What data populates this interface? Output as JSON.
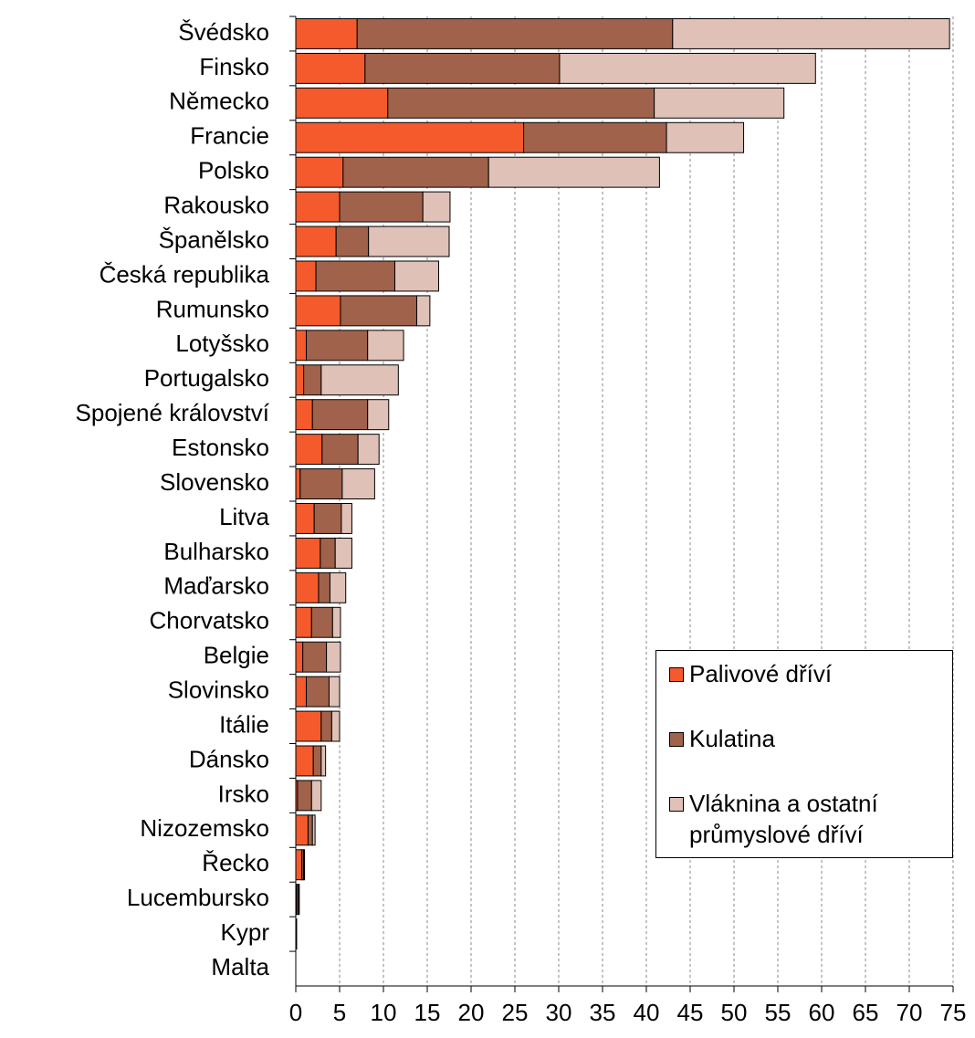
{
  "chart_data": {
    "type": "stacked-barh",
    "categories": [
      "Švédsko",
      "Finsko",
      "Německo",
      "Francie",
      "Polsko",
      "Rakousko",
      "Španělsko",
      "Česká republika",
      "Rumunsko",
      "Lotyšsko",
      "Portugalsko",
      "Spojené království",
      "Estonsko",
      "Slovensko",
      "Litva",
      "Bulharsko",
      "Maďarsko",
      "Chorvatsko",
      "Belgie",
      "Slovinsko",
      "Itálie",
      "Dánsko",
      "Irsko",
      "Nizozemsko",
      "Řecko",
      "Lucembursko",
      "Kypr",
      "Malta"
    ],
    "series": [
      {
        "name": "Palivové dříví",
        "color": "#f55a2c",
        "values": [
          7.0,
          7.9,
          10.5,
          26.0,
          5.4,
          5.0,
          4.6,
          2.3,
          5.1,
          1.2,
          0.9,
          1.9,
          3.0,
          0.5,
          2.1,
          2.8,
          2.6,
          1.8,
          0.8,
          1.2,
          2.9,
          2.0,
          0.2,
          1.4,
          0.7,
          0.1,
          0.0,
          0.0
        ]
      },
      {
        "name": "Kulatina",
        "color": "#a0624b",
        "values": [
          36.0,
          22.2,
          30.4,
          16.3,
          16.6,
          9.5,
          3.7,
          9.0,
          8.7,
          7.0,
          2.0,
          6.3,
          4.1,
          4.8,
          3.1,
          1.7,
          1.3,
          2.4,
          2.7,
          2.6,
          1.2,
          0.9,
          1.6,
          0.5,
          0.2,
          0.2,
          0.1,
          0.0
        ]
      },
      {
        "name": "Vláknina a ostatní průmyslové dříví",
        "color": "#dfc1b7",
        "values": [
          31.6,
          29.2,
          14.8,
          8.8,
          19.5,
          3.1,
          9.2,
          5.0,
          1.5,
          4.1,
          8.8,
          2.4,
          2.4,
          3.7,
          1.2,
          1.9,
          1.8,
          0.9,
          1.6,
          1.2,
          0.9,
          0.5,
          1.1,
          0.3,
          0.1,
          0.1,
          0.0,
          0.0
        ]
      }
    ],
    "xlim": [
      0,
      75
    ],
    "xticks": [
      0,
      5,
      10,
      15,
      20,
      25,
      30,
      35,
      40,
      45,
      50,
      55,
      60,
      65,
      70,
      75
    ],
    "grid": true,
    "legend": "lower right"
  }
}
